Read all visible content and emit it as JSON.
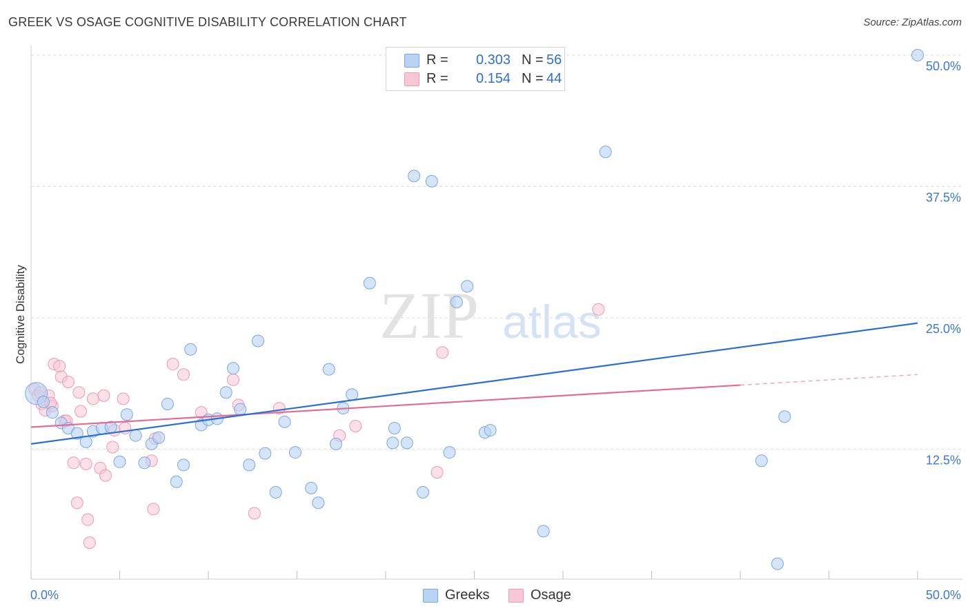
{
  "header": {
    "title": "GREEK VS OSAGE COGNITIVE DISABILITY CORRELATION CHART",
    "source": "Source: ZipAtlas.com"
  },
  "legend": {
    "greeks": {
      "r_label": "R =",
      "r_value": "0.303",
      "n_label": "N =",
      "n_value": "56"
    },
    "osage": {
      "r_label": "R =",
      "r_value": "0.154",
      "n_label": "N =",
      "n_value": "44"
    }
  },
  "watermark": {
    "zip": "ZIP",
    "atlas": "atlas"
  },
  "colors": {
    "greeks_fill": "#b9d3f5",
    "greeks_stroke": "#7aa6e0",
    "greeks_line": "#2a6fd0",
    "osage_fill": "#f8c7d6",
    "osage_stroke": "#ea9ab3",
    "osage_line": "#e56a93",
    "grid": "#dcdcdc",
    "tick_label": "#3a78cf"
  },
  "chart_data": {
    "type": "scatter",
    "title": "GREEK VS OSAGE COGNITIVE DISABILITY CORRELATION CHART",
    "xlabel": "",
    "ylabel": "Cognitive Disability",
    "xlim": [
      0,
      50
    ],
    "ylim": [
      0,
      51.5
    ],
    "x_tick_labels": [
      "0.0%",
      "50.0%"
    ],
    "y_ticks": [
      12.5,
      25.0,
      37.5,
      50.0
    ],
    "y_tick_labels": [
      "12.5%",
      "25.0%",
      "37.5%",
      "50.0%"
    ],
    "grid": true,
    "legend_position": "bottom-center",
    "series": [
      {
        "name": "Greeks",
        "r": 0.303,
        "n": 56,
        "trend": {
          "x": [
            0,
            50
          ],
          "y": [
            13.0,
            24.5
          ]
        },
        "points": [
          [
            0.3,
            17.8
          ],
          [
            0.7,
            17.0
          ],
          [
            1.2,
            16.0
          ],
          [
            1.7,
            15.0
          ],
          [
            2.1,
            14.5
          ],
          [
            2.6,
            14.0
          ],
          [
            3.1,
            13.2
          ],
          [
            3.5,
            14.2
          ],
          [
            4.0,
            14.5
          ],
          [
            4.5,
            14.6
          ],
          [
            5.0,
            11.3
          ],
          [
            5.4,
            15.8
          ],
          [
            5.9,
            13.8
          ],
          [
            6.4,
            11.2
          ],
          [
            6.8,
            13.0
          ],
          [
            7.2,
            13.6
          ],
          [
            7.7,
            16.8
          ],
          [
            8.2,
            9.4
          ],
          [
            8.6,
            11.0
          ],
          [
            9.0,
            22.0
          ],
          [
            9.6,
            14.8
          ],
          [
            10.0,
            15.3
          ],
          [
            10.5,
            15.4
          ],
          [
            11.0,
            17.9
          ],
          [
            11.4,
            20.2
          ],
          [
            11.8,
            16.3
          ],
          [
            12.3,
            11.0
          ],
          [
            12.8,
            22.8
          ],
          [
            13.2,
            12.1
          ],
          [
            13.8,
            8.4
          ],
          [
            14.3,
            15.1
          ],
          [
            14.9,
            12.2
          ],
          [
            15.8,
            8.8
          ],
          [
            16.2,
            7.4
          ],
          [
            16.8,
            20.1
          ],
          [
            17.2,
            13.0
          ],
          [
            17.6,
            16.4
          ],
          [
            18.1,
            17.7
          ],
          [
            19.1,
            28.3
          ],
          [
            20.4,
            13.1
          ],
          [
            20.5,
            14.5
          ],
          [
            21.2,
            13.1
          ],
          [
            21.6,
            38.5
          ],
          [
            22.1,
            8.4
          ],
          [
            22.6,
            38.0
          ],
          [
            23.6,
            12.2
          ],
          [
            24.0,
            26.5
          ],
          [
            24.6,
            28.0
          ],
          [
            25.6,
            14.1
          ],
          [
            25.9,
            14.3
          ],
          [
            28.9,
            4.7
          ],
          [
            32.4,
            40.8
          ],
          [
            41.2,
            11.4
          ],
          [
            42.5,
            15.6
          ],
          [
            42.1,
            1.6
          ],
          [
            50.0,
            50.0
          ]
        ]
      },
      {
        "name": "Osage",
        "r": 0.154,
        "n": 44,
        "trend": {
          "x": [
            0,
            40
          ],
          "y": [
            14.6,
            18.6
          ]
        },
        "trend_dashed": {
          "x": [
            40,
            50
          ],
          "y": [
            18.6,
            19.6
          ]
        },
        "points": [
          [
            0.2,
            18.2
          ],
          [
            0.4,
            17.6
          ],
          [
            0.6,
            16.8
          ],
          [
            0.8,
            16.2
          ],
          [
            1.0,
            17.6
          ],
          [
            1.2,
            16.6
          ],
          [
            1.3,
            20.6
          ],
          [
            1.6,
            20.4
          ],
          [
            1.7,
            19.4
          ],
          [
            1.9,
            15.2
          ],
          [
            2.0,
            15.2
          ],
          [
            2.1,
            18.9
          ],
          [
            2.4,
            11.2
          ],
          [
            2.6,
            7.4
          ],
          [
            2.7,
            17.9
          ],
          [
            2.8,
            16.1
          ],
          [
            3.1,
            11.1
          ],
          [
            3.2,
            5.8
          ],
          [
            3.3,
            3.6
          ],
          [
            3.5,
            17.3
          ],
          [
            3.9,
            10.7
          ],
          [
            4.1,
            17.6
          ],
          [
            4.2,
            10.0
          ],
          [
            4.6,
            12.7
          ],
          [
            4.7,
            14.3
          ],
          [
            5.2,
            17.3
          ],
          [
            5.3,
            14.5
          ],
          [
            6.8,
            11.4
          ],
          [
            6.9,
            6.8
          ],
          [
            7.0,
            13.5
          ],
          [
            8.0,
            20.6
          ],
          [
            8.6,
            19.6
          ],
          [
            9.6,
            16.0
          ],
          [
            11.4,
            19.1
          ],
          [
            11.7,
            16.7
          ],
          [
            12.6,
            6.4
          ],
          [
            14.0,
            16.4
          ],
          [
            17.4,
            13.8
          ],
          [
            18.3,
            14.7
          ],
          [
            22.9,
            10.3
          ],
          [
            23.2,
            21.7
          ],
          [
            32.0,
            25.8
          ],
          [
            0.5,
            17.9
          ],
          [
            1.1,
            16.9
          ]
        ]
      }
    ]
  }
}
